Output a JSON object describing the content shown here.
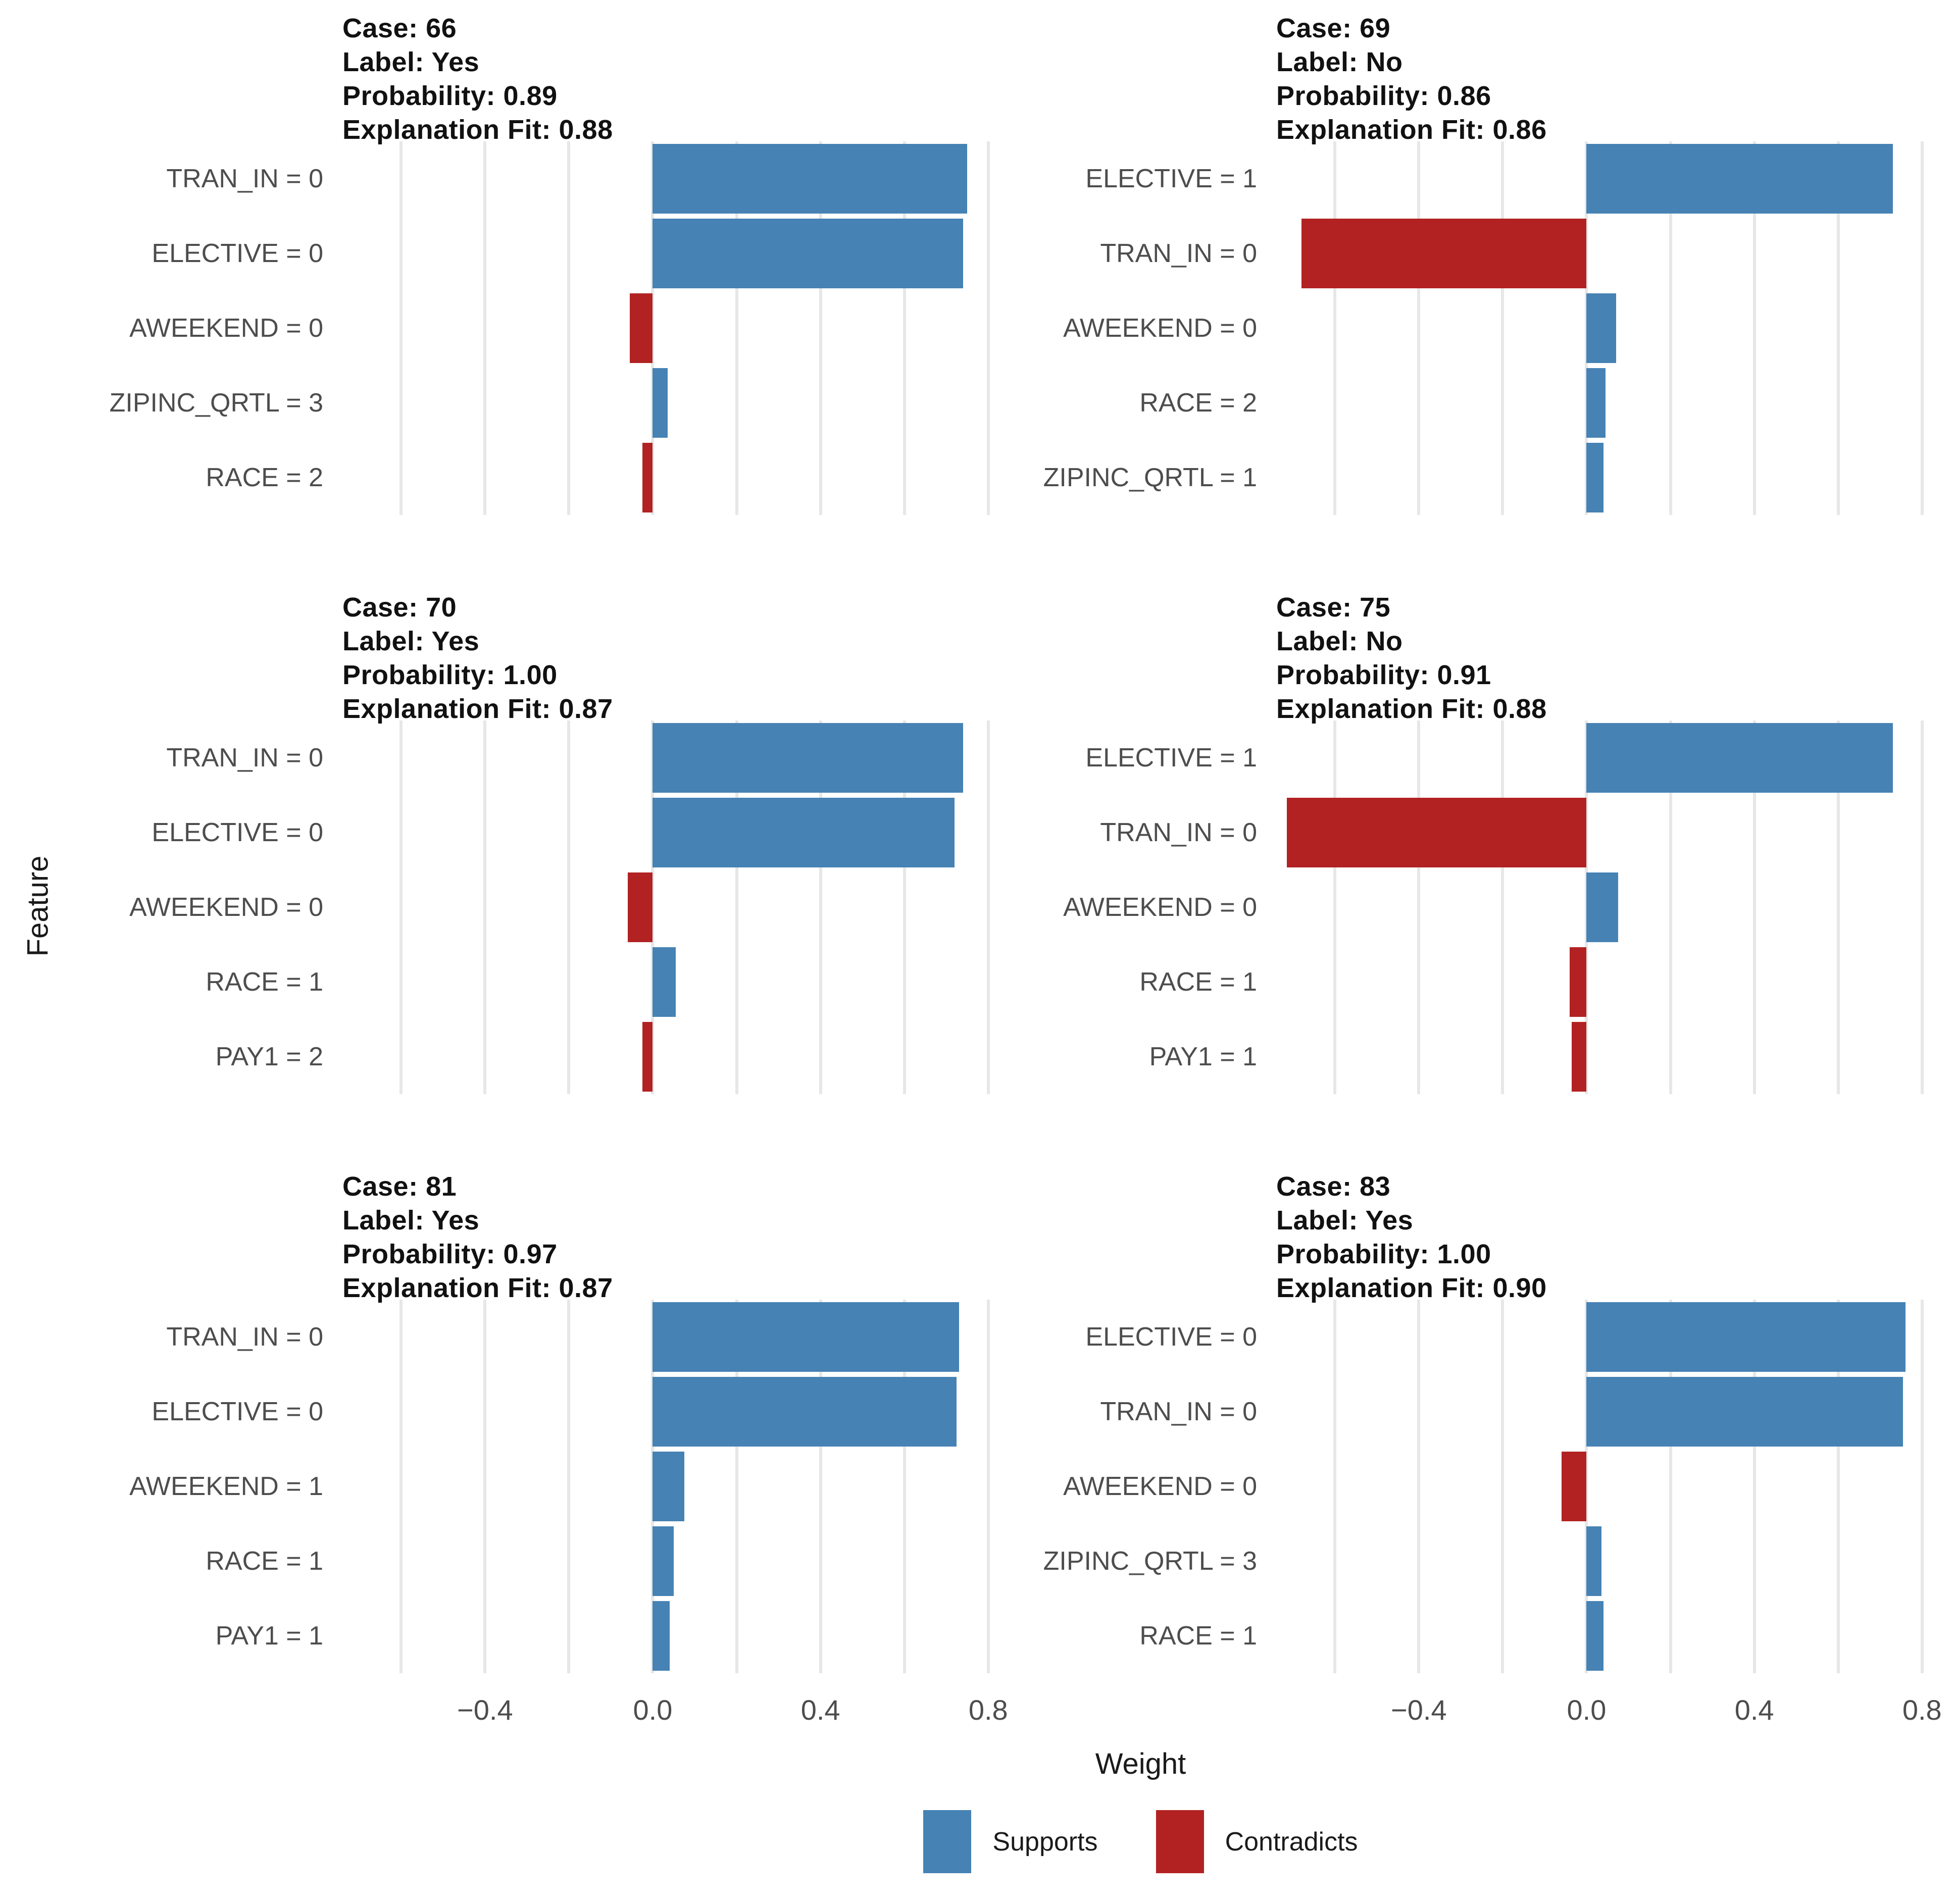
{
  "figure": {
    "background_color": "#FFFFFF",
    "gridline_color": "#E7E7E7",
    "text_color_labels": "#4D4D4D",
    "text_color_headers": "#111111"
  },
  "chart_data": {
    "type": "bar",
    "orientation": "horizontal",
    "facet_layout": {
      "rows": 3,
      "cols": 2
    },
    "xlabel": "Weight",
    "ylabel": "Feature",
    "xlim": [
      -0.74,
      0.84
    ],
    "gridlines": [
      -0.6,
      -0.4,
      -0.2,
      0.0,
      0.2,
      0.4,
      0.6,
      0.8
    ],
    "x_tick_values": [
      -0.4,
      0.0,
      0.4,
      0.8
    ],
    "x_tick_labels": [
      "−0.4",
      "0.0",
      "0.4",
      "0.8"
    ],
    "legend": [
      {
        "label": "Supports",
        "color": "#4682B4"
      },
      {
        "label": "Contradicts",
        "color": "#B22222"
      }
    ],
    "facets": [
      {
        "case": "66",
        "label": "Yes",
        "probability": "0.89",
        "explanation_fit": "0.88",
        "header": [
          "Case: 66",
          "Label: Yes",
          "Probability: 0.89",
          "Explanation Fit: 0.88"
        ],
        "features": [
          {
            "feature": "TRAN_IN = 0",
            "weight": 0.75,
            "direction": "supports"
          },
          {
            "feature": "ELECTIVE = 0",
            "weight": 0.74,
            "direction": "supports"
          },
          {
            "feature": "AWEEKEND = 0",
            "weight": -0.055,
            "direction": "contradicts"
          },
          {
            "feature": "ZIPINC_QRTL = 3",
            "weight": 0.035,
            "direction": "supports"
          },
          {
            "feature": "RACE = 2",
            "weight": -0.025,
            "direction": "contradicts"
          }
        ]
      },
      {
        "case": "69",
        "label": "No",
        "probability": "0.86",
        "explanation_fit": "0.86",
        "header": [
          "Case: 69",
          "Label: No",
          "Probability: 0.86",
          "Explanation Fit: 0.86"
        ],
        "features": [
          {
            "feature": "ELECTIVE = 1",
            "weight": 0.73,
            "direction": "supports"
          },
          {
            "feature": "TRAN_IN = 0",
            "weight": -0.68,
            "direction": "contradicts"
          },
          {
            "feature": "AWEEKEND = 0",
            "weight": 0.07,
            "direction": "supports"
          },
          {
            "feature": "RACE = 2",
            "weight": 0.045,
            "direction": "supports"
          },
          {
            "feature": "ZIPINC_QRTL = 1",
            "weight": 0.04,
            "direction": "supports"
          }
        ]
      },
      {
        "case": "70",
        "label": "Yes",
        "probability": "1.00",
        "explanation_fit": "0.87",
        "header": [
          "Case: 70",
          "Label: Yes",
          "Probability: 1.00",
          "Explanation Fit: 0.87"
        ],
        "features": [
          {
            "feature": "TRAN_IN = 0",
            "weight": 0.74,
            "direction": "supports"
          },
          {
            "feature": "ELECTIVE = 0",
            "weight": 0.72,
            "direction": "supports"
          },
          {
            "feature": "AWEEKEND = 0",
            "weight": -0.06,
            "direction": "contradicts"
          },
          {
            "feature": "RACE = 1",
            "weight": 0.055,
            "direction": "supports"
          },
          {
            "feature": "PAY1 = 2",
            "weight": -0.025,
            "direction": "contradicts"
          }
        ]
      },
      {
        "case": "75",
        "label": "No",
        "probability": "0.91",
        "explanation_fit": "0.88",
        "header": [
          "Case: 75",
          "Label: No",
          "Probability: 0.91",
          "Explanation Fit: 0.88"
        ],
        "features": [
          {
            "feature": "ELECTIVE = 1",
            "weight": 0.73,
            "direction": "supports"
          },
          {
            "feature": "TRAN_IN = 0",
            "weight": -0.715,
            "direction": "contradicts"
          },
          {
            "feature": "AWEEKEND = 0",
            "weight": 0.075,
            "direction": "supports"
          },
          {
            "feature": "RACE = 1",
            "weight": -0.04,
            "direction": "contradicts"
          },
          {
            "feature": "PAY1 = 1",
            "weight": -0.035,
            "direction": "contradicts"
          }
        ]
      },
      {
        "case": "81",
        "label": "Yes",
        "probability": "0.97",
        "explanation_fit": "0.87",
        "header": [
          "Case: 81",
          "Label: Yes",
          "Probability: 0.97",
          "Explanation Fit: 0.87"
        ],
        "features": [
          {
            "feature": "TRAN_IN = 0",
            "weight": 0.73,
            "direction": "supports"
          },
          {
            "feature": "ELECTIVE = 0",
            "weight": 0.725,
            "direction": "supports"
          },
          {
            "feature": "AWEEKEND = 1",
            "weight": 0.075,
            "direction": "supports"
          },
          {
            "feature": "RACE = 1",
            "weight": 0.05,
            "direction": "supports"
          },
          {
            "feature": "PAY1 = 1",
            "weight": 0.04,
            "direction": "supports"
          }
        ]
      },
      {
        "case": "83",
        "label": "Yes",
        "probability": "1.00",
        "explanation_fit": "0.90",
        "header": [
          "Case: 83",
          "Label: Yes",
          "Probability: 1.00",
          "Explanation Fit: 0.90"
        ],
        "features": [
          {
            "feature": "ELECTIVE = 0",
            "weight": 0.76,
            "direction": "supports"
          },
          {
            "feature": "TRAN_IN = 0",
            "weight": 0.755,
            "direction": "supports"
          },
          {
            "feature": "AWEEKEND = 0",
            "weight": -0.06,
            "direction": "contradicts"
          },
          {
            "feature": "ZIPINC_QRTL = 3",
            "weight": 0.035,
            "direction": "supports"
          },
          {
            "feature": "RACE = 1",
            "weight": 0.04,
            "direction": "supports"
          }
        ]
      }
    ]
  }
}
